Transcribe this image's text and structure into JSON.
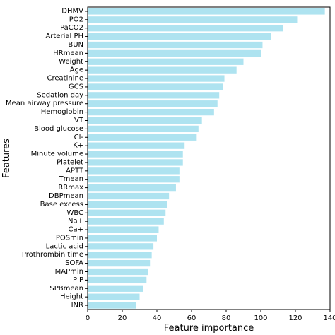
{
  "chart_data": {
    "type": "bar",
    "orientation": "horizontal",
    "title": "",
    "xlabel": "Feature importance",
    "ylabel": "Features",
    "xlim": [
      0,
      140
    ],
    "xticks": [
      "0",
      "20",
      "40",
      "60",
      "80",
      "100",
      "120",
      "140"
    ],
    "grid": false,
    "bar_color": "#aee3f0",
    "categories": [
      "DHMV",
      "PO2",
      "PaCO2",
      "Arterial PH",
      "BUN",
      "HRmean",
      "Weight",
      "Age",
      "Creatinine",
      "GCS",
      "Sedation day",
      "Mean airway pressure",
      "Hemoglobin",
      "VT",
      "Blood glucose",
      "Cl-",
      "K+",
      "Minute volume",
      "Platelet",
      "APTT",
      "Tmean",
      "RRmax",
      "DBPmean",
      "Base excess",
      "WBC",
      "Na+",
      "Ca+",
      "POSmin",
      "Lactic acid",
      "Prothrombin time",
      "SOFA",
      "MAPmin",
      "PIP",
      "SPBmean",
      "Height",
      "INR"
    ],
    "values": [
      137,
      121,
      113,
      106,
      101,
      100,
      90,
      86,
      79,
      78,
      76,
      75,
      73,
      66,
      64,
      63,
      56,
      55,
      55,
      53,
      53,
      51,
      47,
      46,
      45,
      44,
      41,
      40,
      38,
      37,
      36,
      35,
      34,
      32,
      30,
      28
    ]
  }
}
